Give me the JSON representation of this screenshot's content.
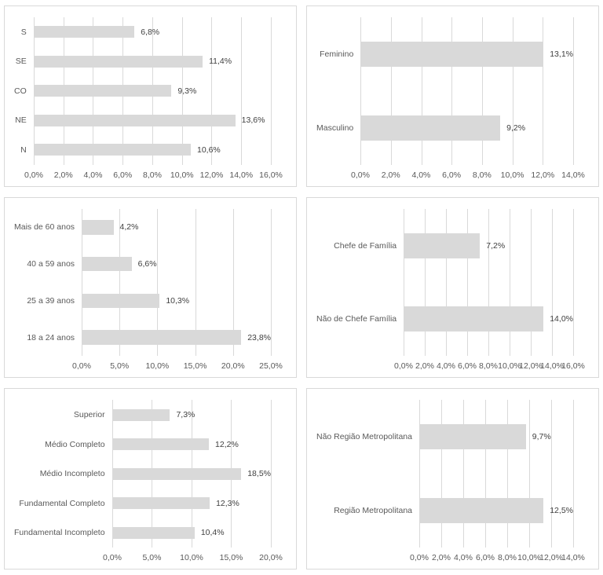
{
  "page": {
    "background": "#ffffff"
  },
  "styles": {
    "bar_color": "#d9d9d9",
    "gridline_color": "#d9d9d9",
    "panel_border_color": "#d9d9d9",
    "axis_text_color": "#595959",
    "value_label_color": "#404040"
  },
  "chart_data": [
    {
      "type": "bar",
      "orientation": "horizontal",
      "name": "region",
      "title": "",
      "categories": [
        "S",
        "SE",
        "CO",
        "NE",
        "N"
      ],
      "values": [
        6.8,
        11.4,
        9.3,
        13.6,
        10.6
      ],
      "value_labels": [
        "6,8%",
        "11,4%",
        "9,3%",
        "13,6%",
        "10,6%"
      ],
      "xlim": [
        0,
        16
      ],
      "tick_step": 2,
      "tick_labels": [
        "0,0%",
        "2,0%",
        "4,0%",
        "6,0%",
        "8,0%",
        "10,0%",
        "12,0%",
        "14,0%",
        "16,0%"
      ],
      "grid": true,
      "legend": "none"
    },
    {
      "type": "bar",
      "orientation": "horizontal",
      "name": "gender",
      "title": "",
      "categories": [
        "Feminino",
        "Masculino"
      ],
      "values": [
        13.1,
        9.2
      ],
      "value_labels": [
        "13,1%",
        "9,2%"
      ],
      "xlim": [
        0,
        14
      ],
      "tick_step": 2,
      "tick_labels": [
        "0,0%",
        "2,0%",
        "4,0%",
        "6,0%",
        "8,0%",
        "10,0%",
        "12,0%",
        "14,0%"
      ],
      "grid": true,
      "legend": "none"
    },
    {
      "type": "bar",
      "orientation": "horizontal",
      "name": "age-group",
      "title": "",
      "categories": [
        "Mais de 60 anos",
        "40 a 59 anos",
        "25 a 39 anos",
        "18 a 24 anos"
      ],
      "values": [
        4.2,
        6.6,
        10.3,
        23.8
      ],
      "value_labels": [
        "4,2%",
        "6,6%",
        "10,3%",
        "23,8%"
      ],
      "xlim": [
        0,
        25
      ],
      "tick_step": 5,
      "tick_labels": [
        "0,0%",
        "5,0%",
        "10,0%",
        "15,0%",
        "20,0%",
        "25,0%"
      ],
      "grid": true,
      "legend": "none"
    },
    {
      "type": "bar",
      "orientation": "horizontal",
      "name": "household-head",
      "title": "",
      "categories": [
        "Chefe de Família",
        "Não de Chefe Família"
      ],
      "values": [
        7.2,
        14.0
      ],
      "value_labels": [
        "7,2%",
        "14,0%"
      ],
      "xlim": [
        0,
        16
      ],
      "tick_step": 2,
      "tick_labels": [
        "0,0%",
        "2,0%",
        "4,0%",
        "6,0%",
        "8,0%",
        "10,0%",
        "12,0%",
        "14,0%",
        "16,0%"
      ],
      "grid": true,
      "legend": "none"
    },
    {
      "type": "bar",
      "orientation": "horizontal",
      "name": "education",
      "title": "",
      "categories": [
        "Superior",
        "Médio Completo",
        "Médio Incompleto",
        "Fundamental Completo",
        "Fundamental Incompleto"
      ],
      "values": [
        7.3,
        12.2,
        18.5,
        12.3,
        10.4
      ],
      "value_labels": [
        "7,3%",
        "12,2%",
        "18,5%",
        "12,3%",
        "10,4%"
      ],
      "xlim": [
        0,
        20
      ],
      "tick_step": 5,
      "tick_labels": [
        "0,0%",
        "5,0%",
        "10,0%",
        "15,0%",
        "20,0%"
      ],
      "grid": true,
      "legend": "none"
    },
    {
      "type": "bar",
      "orientation": "horizontal",
      "name": "metropolitan-region",
      "title": "",
      "categories": [
        "Não Região Metropolitana",
        "Região Metropolitana"
      ],
      "values": [
        9.7,
        12.5
      ],
      "value_labels": [
        "9,7%",
        "12,5%"
      ],
      "xlim": [
        0,
        14
      ],
      "tick_step": 2,
      "tick_labels": [
        "0,0%",
        "2,0%",
        "4,0%",
        "6,0%",
        "8,0%",
        "10,0%",
        "12,0%",
        "14,0%"
      ],
      "grid": true,
      "legend": "none"
    }
  ]
}
